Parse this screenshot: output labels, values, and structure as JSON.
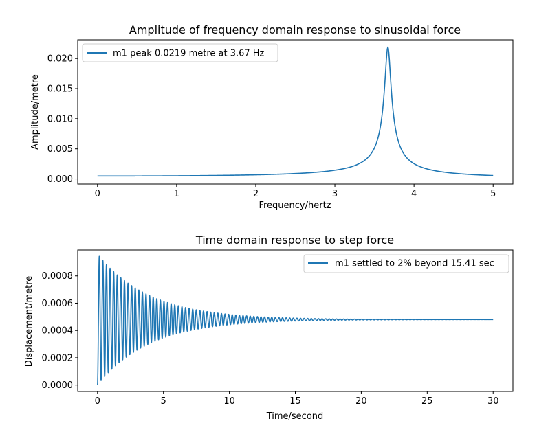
{
  "chart_data": [
    {
      "type": "line",
      "title": "Amplitude of frequency domain response to sinusoidal force",
      "xlabel": "Frequency/hertz",
      "ylabel": "Amplitude/metre",
      "xlim": [
        -0.25,
        5.25
      ],
      "ylim": [
        -0.00085,
        0.0231
      ],
      "xticks": [
        0,
        1,
        2,
        3,
        4,
        5
      ],
      "xtick_labels": [
        "0",
        "1",
        "2",
        "3",
        "4",
        "5"
      ],
      "yticks": [
        0.0,
        0.005,
        0.01,
        0.015,
        0.02
      ],
      "ytick_labels": [
        "0.000",
        "0.005",
        "0.010",
        "0.015",
        "0.020"
      ],
      "legend_position": "top-left",
      "grid": false,
      "series": [
        {
          "name": "m1 peak 0.0219 metre at 3.67 Hz",
          "color": "#1f77b4",
          "model": "resonance",
          "static_amplitude": 0.00048,
          "peak_amplitude": 0.0219,
          "peak_frequency": 3.67,
          "freq_range": [
            0,
            5
          ]
        }
      ]
    },
    {
      "type": "line",
      "title": "Time domain response to step force",
      "xlabel": "Time/second",
      "ylabel": "Displacement/metre",
      "xlim": [
        -1.5,
        31.5
      ],
      "ylim": [
        -4.7e-05,
        0.00099
      ],
      "xticks": [
        0,
        5,
        10,
        15,
        20,
        25,
        30
      ],
      "xtick_labels": [
        "0",
        "5",
        "10",
        "15",
        "20",
        "25",
        "30"
      ],
      "yticks": [
        0.0,
        0.0002,
        0.0004,
        0.0006,
        0.0008
      ],
      "ytick_labels": [
        "0.0000",
        "0.0002",
        "0.0004",
        "0.0006",
        "0.0008"
      ],
      "legend_position": "top-right",
      "grid": false,
      "series": [
        {
          "name": "m1 settled to 2% beyond 15.41 sec",
          "color": "#1f77b4",
          "model": "damped-step",
          "steady_state": 0.00048,
          "first_peak": 0.000943,
          "frequency_hz": 3.67,
          "settling_time": 15.41,
          "time_range": [
            0,
            30
          ]
        }
      ]
    }
  ]
}
